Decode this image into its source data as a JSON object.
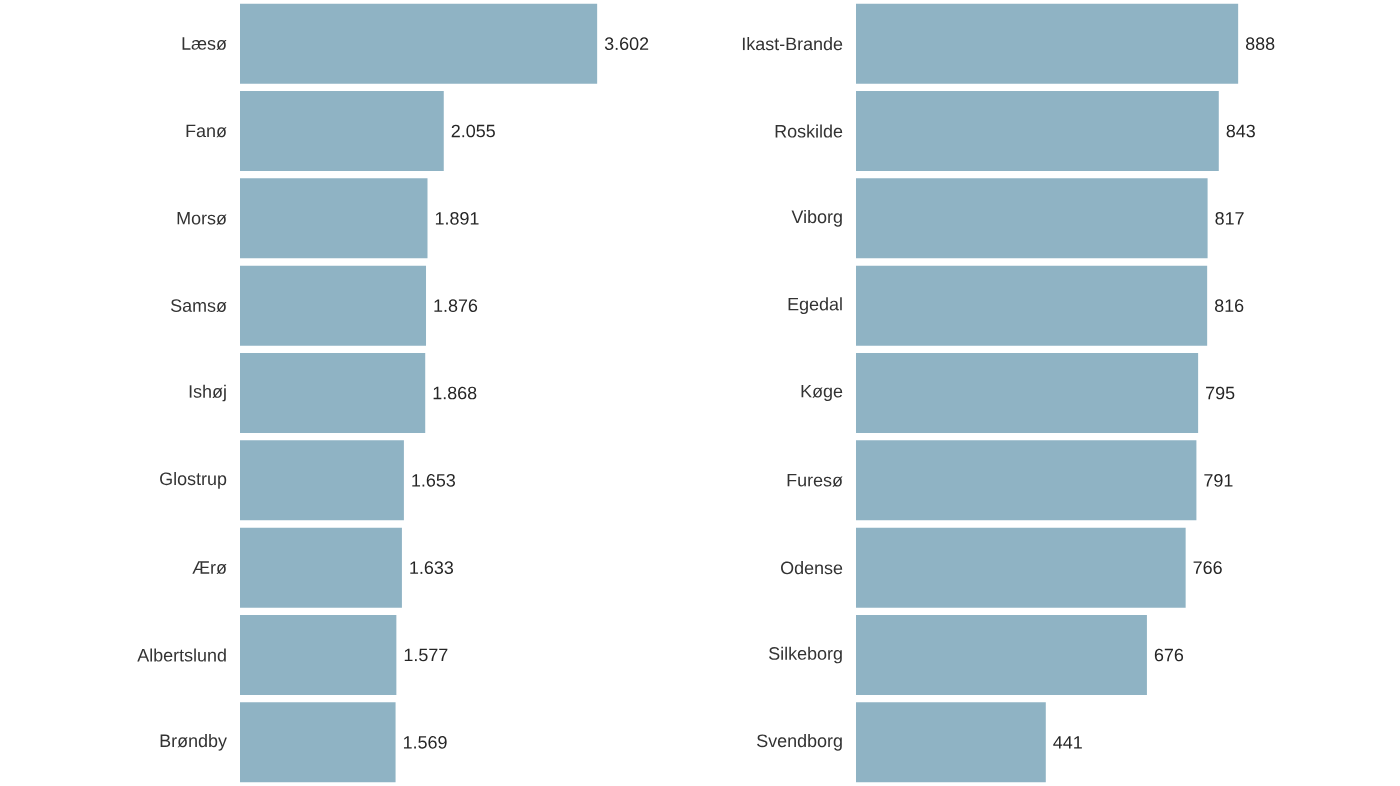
{
  "chart_data": [
    {
      "type": "bar",
      "orientation": "horizontal",
      "color": "#8fb3c4",
      "categories": [
        "Læsø",
        "Fanø",
        "Morsø",
        "Samsø",
        "Ishøj",
        "Glostrup",
        "Ærø",
        "Albertslund",
        "Brøndby"
      ],
      "values": [
        3602,
        2055,
        1891,
        1876,
        1868,
        1653,
        1633,
        1577,
        1569
      ],
      "value_labels": [
        "3.602",
        "2.055",
        "1.891",
        "1.876",
        "1.868",
        "1.653",
        "1.633",
        "1.577",
        "1.569"
      ]
    },
    {
      "type": "bar",
      "orientation": "horizontal",
      "color": "#8fb3c4",
      "categories": [
        "Ikast-Brande",
        "Roskilde",
        "Viborg",
        "Egedal",
        "Køge",
        "Furesø",
        "Odense",
        "Silkeborg",
        "Svendborg"
      ],
      "values": [
        888,
        843,
        817,
        816,
        795,
        791,
        766,
        676,
        441
      ],
      "value_labels": [
        "888",
        "843",
        "817",
        "816",
        "795",
        "791",
        "766",
        "676",
        "441"
      ]
    }
  ]
}
